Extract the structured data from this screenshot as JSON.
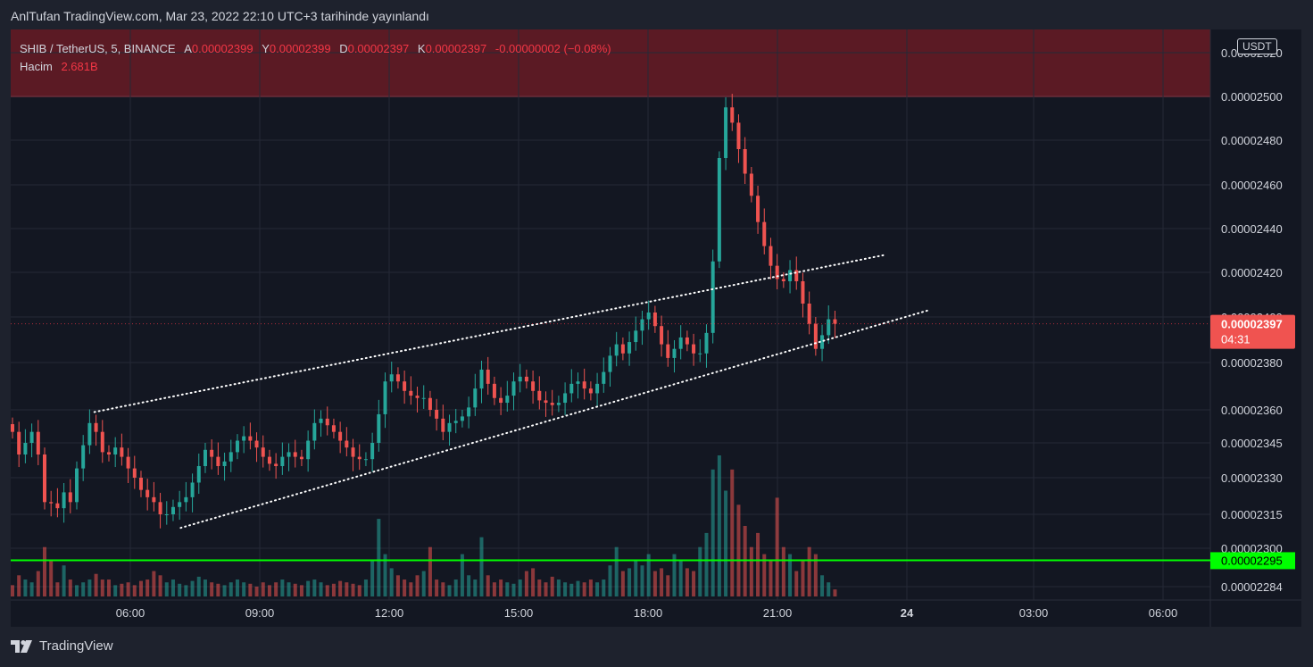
{
  "published_text": "AnlTufan TradingView.com, Mar 23, 2022 22:10 UTC+3 tarihinde yayınlandı",
  "legend": {
    "symbol": "SHIB / TetherUS, 5, BINANCE",
    "open_label": "A",
    "open": "0.00002399",
    "high_label": "Y",
    "high": "0.00002399",
    "low_label": "D",
    "low": "0.00002397",
    "close_label": "K",
    "close": "0.00002397",
    "change": "-0.00000002 (−0.08%)",
    "volume_label": "Hacim",
    "volume": "2.681B"
  },
  "currency": "USDT",
  "brand": "TradingView",
  "colors": {
    "up": "#26a69a",
    "down": "#ef5350",
    "resistance_zone": "#5b1a24",
    "resistance_line": "#f23645",
    "support_line": "#00ff00",
    "trend_line": "#ffffff",
    "price_badge": "#f05350",
    "support_badge": "#00ff00"
  },
  "chart_data": {
    "type": "candlestick",
    "symbol": "SHIB / TetherUS",
    "interval": "5",
    "exchange": "BINANCE",
    "price_axis_labels": [
      "0.00002520",
      "0.00002500",
      "0.00002480",
      "0.00002460",
      "0.00002440",
      "0.00002420",
      "0.00002400",
      "0.00002380",
      "0.00002360",
      "0.00002345",
      "0.00002330",
      "0.00002315",
      "0.00002300",
      "0.00002284"
    ],
    "time_axis_labels": [
      "06:00",
      "09:00",
      "12:00",
      "15:00",
      "18:00",
      "21:00",
      "24",
      "03:00",
      "06:00"
    ],
    "current_price": "0.00002397",
    "countdown": "04:31",
    "support_level": "0.00002295",
    "resistance_zone": {
      "from": 2.5e-05,
      "to": 2.54e-05
    },
    "trend_channel": {
      "upper": [
        {
          "t": "05:10",
          "p": 2.359e-05
        },
        {
          "t": "23:30",
          "p": 2.428e-05
        }
      ],
      "lower": [
        {
          "t": "07:10",
          "p": 2.309e-05
        },
        {
          "t": "00:30",
          "p": 2.403e-05
        }
      ]
    },
    "closes": [
      2.35e-05,
      2.34e-05,
      2.345e-05,
      2.35e-05,
      2.34e-05,
      2.32e-05,
      2.3195e-05,
      2.3175e-05,
      2.324e-05,
      2.32e-05,
      2.334e-05,
      2.344e-05,
      2.354e-05,
      2.35e-05,
      2.341e-05,
      2.34e-05,
      2.343e-05,
      2.339e-05,
      2.334e-05,
      2.33e-05,
      2.325e-05,
      2.322e-05,
      2.32e-05,
      2.315e-05,
      2.315e-05,
      2.318e-05,
      2.32e-05,
      2.322e-05,
      2.328e-05,
      2.335e-05,
      2.342e-05,
      2.339e-05,
      2.335e-05,
      2.337e-05,
      2.341e-05,
      2.346e-05,
      2.348e-05,
      2.346e-05,
      2.343e-05,
      2.339e-05,
      2.336e-05,
      2.335e-05,
      2.339e-05,
      2.341e-05,
      2.339e-05,
      2.338e-05,
      2.346e-05,
      2.354e-05,
      2.356e-05,
      2.353e-05,
      2.35e-05,
      2.346e-05,
      2.343e-05,
      2.339e-05,
      2.338e-05,
      2.338e-05,
      2.345e-05,
      2.358e-05,
      2.372e-05,
      2.375e-05,
      2.372e-05,
      2.368e-05,
      2.366e-05,
      2.365e-05,
      2.365e-05,
      2.36e-05,
      2.356e-05,
      2.35e-05,
      2.354e-05,
      2.355e-05,
      2.357e-05,
      2.361e-05,
      2.369e-05,
      2.377e-05,
      2.371e-05,
      2.365e-05,
      2.363e-05,
      2.366e-05,
      2.372e-05,
      2.374e-05,
      2.372e-05,
      2.368e-05,
      2.364e-05,
      2.363e-05,
      2.362e-05,
      2.363e-05,
      2.367e-05,
      2.371e-05,
      2.372e-05,
      2.369e-05,
      2.367e-05,
      2.371e-05,
      2.376e-05,
      2.383e-05,
      2.388e-05,
      2.384e-05,
      2.389e-05,
      2.394e-05,
      2.399e-05,
      2.402e-05,
      2.396e-05,
      2.388e-05,
      2.382e-05,
      2.386e-05,
      2.391e-05,
      2.388e-05,
      2.384e-05,
      2.384e-05,
      2.393e-05,
      2.425e-05,
      2.472e-05,
      2.495e-05,
      2.488e-05,
      2.476e-05,
      2.465e-05,
      2.455e-05,
      2.443e-05,
      2.432e-05,
      2.423e-05,
      2.417e-05,
      2.416e-05,
      2.421e-05,
      2.416e-05,
      2.406e-05,
      2.397e-05,
      2.386e-05,
      2.392e-05,
      2.399e-05,
      2.397e-05
    ],
    "volume_levels": [
      0.08,
      0.15,
      0.12,
      0.1,
      0.18,
      0.35,
      0.25,
      0.1,
      0.22,
      0.12,
      0.08,
      0.1,
      0.12,
      0.16,
      0.12,
      0.12,
      0.08,
      0.09,
      0.1,
      0.08,
      0.11,
      0.12,
      0.18,
      0.15,
      0.1,
      0.12,
      0.09,
      0.08,
      0.11,
      0.14,
      0.12,
      0.1,
      0.09,
      0.08,
      0.1,
      0.12,
      0.1,
      0.09,
      0.07,
      0.1,
      0.08,
      0.1,
      0.12,
      0.1,
      0.09,
      0.08,
      0.11,
      0.12,
      0.1,
      0.08,
      0.09,
      0.11,
      0.1,
      0.09,
      0.08,
      0.12,
      0.25,
      0.55,
      0.3,
      0.2,
      0.15,
      0.12,
      0.1,
      0.15,
      0.18,
      0.35,
      0.12,
      0.1,
      0.08,
      0.12,
      0.3,
      0.15,
      0.12,
      0.42,
      0.15,
      0.1,
      0.12,
      0.1,
      0.09,
      0.12,
      0.18,
      0.2,
      0.12,
      0.1,
      0.14,
      0.12,
      0.1,
      0.09,
      0.11,
      0.1,
      0.12,
      0.1,
      0.12,
      0.22,
      0.35,
      0.18,
      0.2,
      0.25,
      0.22,
      0.3,
      0.18,
      0.2,
      0.15,
      0.3,
      0.25,
      0.2,
      0.18,
      0.35,
      0.45,
      0.9,
      1.0,
      0.75,
      0.9,
      0.65,
      0.5,
      0.35,
      0.45,
      0.3,
      0.25,
      0.7,
      0.35,
      0.3,
      0.18,
      0.25,
      0.35,
      0.3,
      0.15,
      0.1,
      0.05
    ]
  }
}
